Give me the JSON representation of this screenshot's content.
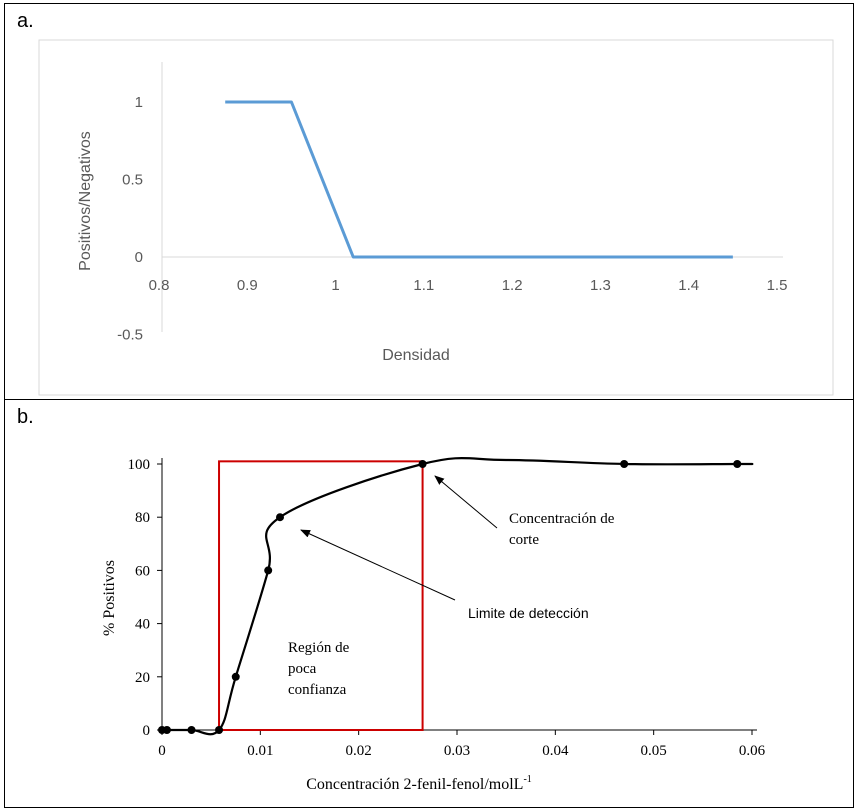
{
  "chart_data": [
    {
      "panel_label": "a.",
      "type": "line",
      "xlabel": "Densidad",
      "ylabel": "Positivos/Negativos",
      "xlim": [
        0.8,
        1.5
      ],
      "ylim": [
        -0.5,
        1.2
      ],
      "x_ticks": [
        "0.8",
        "0.9",
        "1",
        "1.1",
        "1.2",
        "1.3",
        "1.4",
        "1.5"
      ],
      "y_ticks": [
        "-0.5",
        "0",
        "0.5",
        "1"
      ],
      "grid": false,
      "line_color": "#5b9bd5",
      "series": [
        {
          "x": [
            0.875,
            0.95,
            1.02,
            1.45
          ],
          "y": [
            1,
            1,
            0,
            0
          ]
        }
      ]
    },
    {
      "panel_label": "b.",
      "type": "line",
      "xlabel": "Concentración 2-fenil-fenol/molL",
      "xlabel_superscript": "-1",
      "ylabel": "% Positivos",
      "xlim": [
        0,
        0.06
      ],
      "ylim": [
        0,
        100
      ],
      "x_ticks": [
        "0",
        "0.01",
        "0.02",
        "0.03",
        "0.04",
        "0.05",
        "0.06"
      ],
      "y_ticks": [
        "0",
        "20",
        "40",
        "60",
        "80",
        "100"
      ],
      "grid": false,
      "line_color": "#000000",
      "series": [
        {
          "x": [
            0,
            0.0005,
            0.003,
            0.0058,
            0.0075,
            0.0108,
            0.012,
            0.0265,
            0.047,
            0.0585
          ],
          "y": [
            0,
            0,
            0,
            0,
            20,
            60,
            80,
            100,
            100,
            100
          ]
        }
      ],
      "region": {
        "x_start": 0.0058,
        "x_end": 0.0265,
        "y_top": 101,
        "color": "#cc0000"
      },
      "annotations": {
        "region_text": [
          "Región de",
          "poca",
          "confianza"
        ],
        "cutoff_text": [
          "Concentración de",
          "corte"
        ],
        "detection_text": "Limite de detección"
      }
    }
  ]
}
